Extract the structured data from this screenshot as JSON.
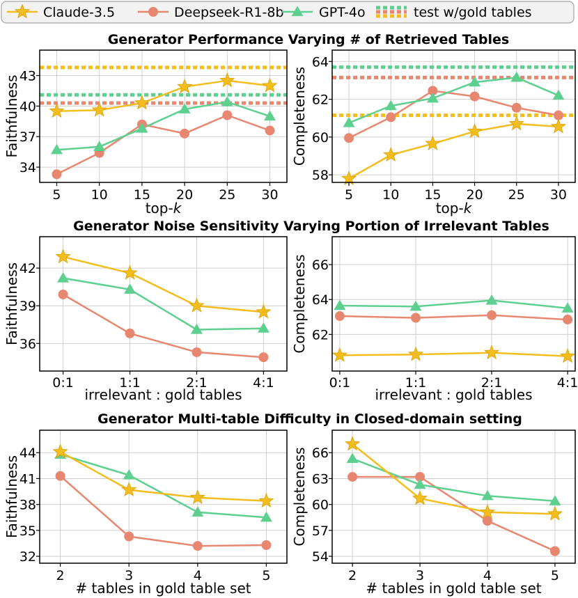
{
  "legend": {
    "entries": [
      {
        "name": "Claude-3.5",
        "color": "#f2bd1d",
        "marker": "star"
      },
      {
        "name": "Deepseek-R1-8b",
        "color": "#e8876f",
        "marker": "circle"
      },
      {
        "name": "GPT-4o",
        "color": "#5dcf8f",
        "marker": "triangle"
      },
      {
        "name": "test w/gold tables",
        "color": "",
        "marker": "dashed"
      }
    ]
  },
  "row_titles": [
    "Generator Performance Varying # of Retrieved Tables",
    "Generator Noise Sensitivity Varying Portion of Irrelevant Tables",
    "Generator Multi-table Difficulty in Closed-domain setting"
  ],
  "chart_data": [
    {
      "type": "line",
      "id": "r1c1",
      "x": [
        5,
        10,
        15,
        20,
        25,
        30
      ],
      "xticks": [
        "5",
        "10",
        "15",
        "20",
        "25",
        "30"
      ],
      "xlabel": "top-k",
      "xlabel_main": "top-",
      "xlabel_italic": "k",
      "ylabel": "Faithfulness",
      "ylim": [
        32.5,
        45.5
      ],
      "yticks": [
        34,
        37,
        40,
        43
      ],
      "series": [
        {
          "name": "Claude-3.5",
          "values": [
            39.5,
            39.6,
            40.3,
            41.9,
            42.5,
            42.0
          ]
        },
        {
          "name": "Deepseek-R1-8b",
          "values": [
            33.3,
            35.4,
            38.2,
            37.3,
            39.1,
            37.6
          ]
        },
        {
          "name": "GPT-4o",
          "values": [
            35.7,
            36.0,
            37.8,
            39.7,
            40.4,
            39.0
          ]
        }
      ],
      "reference": [
        {
          "name": "Claude-3.5",
          "value": 43.8
        },
        {
          "name": "GPT-4o",
          "value": 41.1
        },
        {
          "name": "Deepseek-R1-8b",
          "value": 40.3
        }
      ]
    },
    {
      "type": "line",
      "id": "r1c2",
      "x": [
        5,
        10,
        15,
        20,
        25,
        30
      ],
      "xticks": [
        "5",
        "10",
        "15",
        "20",
        "25",
        "30"
      ],
      "xlabel": "top-k",
      "xlabel_main": "top-",
      "xlabel_italic": "k",
      "ylabel": "Completeness",
      "ylim": [
        57.6,
        64.6
      ],
      "yticks": [
        58,
        60,
        62,
        64
      ],
      "series": [
        {
          "name": "Claude-3.5",
          "values": [
            57.8,
            59.05,
            59.65,
            60.3,
            60.7,
            60.55
          ]
        },
        {
          "name": "Deepseek-R1-8b",
          "values": [
            59.95,
            61.05,
            62.45,
            62.15,
            61.55,
            61.15
          ]
        },
        {
          "name": "GPT-4o",
          "values": [
            60.75,
            61.65,
            62.05,
            62.9,
            63.15,
            62.2
          ]
        }
      ],
      "reference": [
        {
          "name": "GPT-4o",
          "value": 63.7
        },
        {
          "name": "Deepseek-R1-8b",
          "value": 63.15
        },
        {
          "name": "Claude-3.5",
          "value": 61.15
        }
      ]
    },
    {
      "type": "line",
      "id": "r2c1",
      "x": [
        0,
        1,
        2,
        3
      ],
      "xticks": [
        "0:1",
        "1:1",
        "2:1",
        "4:1"
      ],
      "xlabel": "irrelevant : gold tables",
      "ylabel": "Faithfulness",
      "ylim": [
        33.8,
        44.5
      ],
      "yticks": [
        36,
        39,
        42
      ],
      "series": [
        {
          "name": "Claude-3.5",
          "values": [
            42.9,
            41.6,
            39.0,
            38.5
          ]
        },
        {
          "name": "Deepseek-R1-8b",
          "values": [
            39.9,
            36.8,
            35.3,
            34.9
          ]
        },
        {
          "name": "GPT-4o",
          "values": [
            41.2,
            40.3,
            37.1,
            37.2
          ]
        }
      ]
    },
    {
      "type": "line",
      "id": "r2c2",
      "x": [
        0,
        1,
        2,
        3
      ],
      "xticks": [
        "0:1",
        "1:1",
        "2:1",
        "4:1"
      ],
      "xlabel": "irrelevant : gold tables",
      "ylabel": "Completeness",
      "ylim": [
        59.9,
        67.6
      ],
      "yticks": [
        62,
        64,
        66
      ],
      "series": [
        {
          "name": "Claude-3.5",
          "values": [
            60.8,
            60.85,
            60.95,
            60.75
          ]
        },
        {
          "name": "Deepseek-R1-8b",
          "values": [
            63.05,
            62.95,
            63.1,
            62.85
          ]
        },
        {
          "name": "GPT-4o",
          "values": [
            63.65,
            63.6,
            63.95,
            63.5
          ]
        }
      ]
    },
    {
      "type": "line",
      "id": "r3c1",
      "x": [
        2,
        3,
        4,
        5
      ],
      "xticks": [
        "2",
        "3",
        "4",
        "5"
      ],
      "xlabel": "# tables in gold table set",
      "ylabel": "Faithfulness",
      "ylim": [
        31.2,
        46.6
      ],
      "yticks": [
        32,
        35,
        38,
        41,
        44
      ],
      "series": [
        {
          "name": "Claude-3.5",
          "values": [
            44.1,
            39.7,
            38.8,
            38.4
          ]
        },
        {
          "name": "Deepseek-R1-8b",
          "values": [
            41.3,
            34.3,
            33.2,
            33.3
          ]
        },
        {
          "name": "GPT-4o",
          "values": [
            43.8,
            41.4,
            37.1,
            36.5
          ]
        }
      ]
    },
    {
      "type": "line",
      "id": "r3c2",
      "x": [
        2,
        3,
        4,
        5
      ],
      "xticks": [
        "2",
        "3",
        "4",
        "5"
      ],
      "xlabel": "# tables in gold table set",
      "ylabel": "Completeness",
      "ylim": [
        53.2,
        68.6
      ],
      "yticks": [
        54,
        57,
        60,
        63,
        66
      ],
      "series": [
        {
          "name": "Claude-3.5",
          "values": [
            67.0,
            60.7,
            59.1,
            58.9
          ]
        },
        {
          "name": "Deepseek-R1-8b",
          "values": [
            63.2,
            63.2,
            58.1,
            54.6
          ]
        },
        {
          "name": "GPT-4o",
          "values": [
            65.3,
            62.3,
            61.0,
            60.4
          ]
        }
      ]
    }
  ]
}
